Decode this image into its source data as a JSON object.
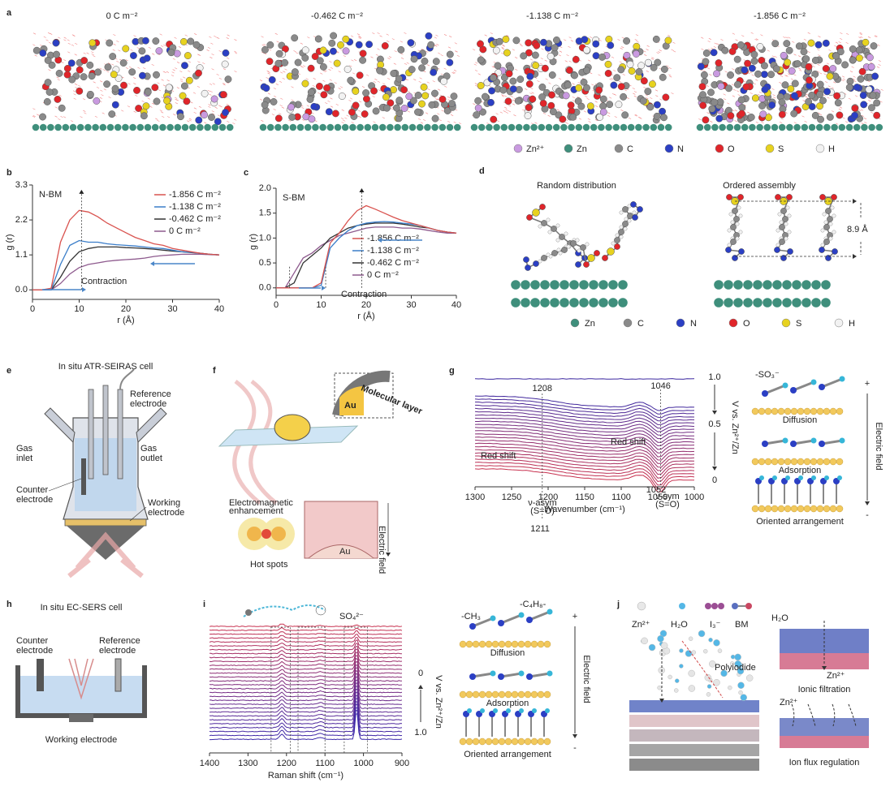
{
  "figure": {
    "a": {
      "label": "a",
      "titles": [
        "0 C m⁻²",
        "-0.462 C m⁻²",
        "-1.138 C m⁻²",
        "-1.856 C m⁻²"
      ],
      "legend": [
        "Zn²⁺",
        "Zn",
        "C",
        "N",
        "O",
        "S",
        "H"
      ]
    },
    "b": {
      "label": "b"
    },
    "c": {
      "label": "c"
    },
    "d": {
      "label": "d",
      "left_title": "Random distribution",
      "right_title": "Ordered assembly",
      "spacing": "8.9 Å",
      "legend": [
        "Zn",
        "C",
        "N",
        "O",
        "S",
        "H"
      ]
    },
    "e": {
      "label": "e",
      "title": "In situ ATR-SEIRAS cell",
      "reference": [
        "Reference",
        "electrode"
      ],
      "gas_inlet": [
        "Gas",
        "inlet"
      ],
      "gas_outlet": [
        "Gas",
        "outlet"
      ],
      "counter": [
        "Counter",
        "electrode"
      ],
      "working": [
        "Working",
        "electrode"
      ]
    },
    "f": {
      "label": "f",
      "layer": "Molecular layer",
      "au_top": "Au",
      "enhancement": [
        "Electromagnetic",
        "enhancement"
      ],
      "hot_spots": "Hot spots",
      "field": "Electric field",
      "au_bottom": "Au"
    },
    "g": {
      "label": "g",
      "peaks_top": [
        "1208",
        "1046"
      ],
      "red_shift": [
        "Red shift",
        "Red shift"
      ],
      "asym": [
        "ν-asym",
        "(S=O)"
      ],
      "sym": [
        "ν-sym",
        "(S=O)"
      ],
      "peaks_bottom": [
        "1211",
        "1052"
      ],
      "potentials": [
        "1.0",
        "0.5",
        "0"
      ],
      "potential_axis": "V vs. Zn²⁺/Zn",
      "scheme": {
        "group": "-SO₃⁻",
        "states": [
          "Diffusion",
          "Adsorption",
          "Oriented arrangement"
        ],
        "plus": "+",
        "minus": "-",
        "field": "Electric field"
      }
    },
    "h": {
      "label": "h",
      "title": "In situ EC-SERS cell",
      "counter": [
        "Counter",
        "electrode"
      ],
      "reference": [
        "Reference",
        "electrode"
      ],
      "working": "Working electrode"
    },
    "i": {
      "label": "i",
      "so4": "SO₄²⁻",
      "potentials": [
        "0",
        "1.0"
      ],
      "potential_axis": "V vs. Zn²⁺/Zn",
      "scheme": {
        "chain": "-C₄H₈-",
        "methyl": "-CH₃",
        "states": [
          "Diffusion",
          "Adsorption",
          "Oriented arrangement"
        ],
        "plus": "+",
        "minus": "-",
        "field": "Electric field"
      }
    },
    "j": {
      "label": "j",
      "legend": [
        "Zn²⁺",
        "H₂O",
        "I₃⁻",
        "BM"
      ],
      "polyiodide": "Polyiodide",
      "h2o": "H₂O",
      "zn_top": "Zn²⁺",
      "filtration": "Ionic filtration",
      "zn_bottom": "Zn²⁺",
      "regulation": "Ion flux regulation"
    }
  },
  "chart_data": [
    {
      "type": "line",
      "label": "N-BM",
      "annotation": "Contraction",
      "xlabel": "r (Å)",
      "ylabel": "g (r)",
      "x": [
        0,
        2,
        4,
        6,
        8,
        10,
        12,
        14,
        16,
        18,
        20,
        22,
        24,
        26,
        28,
        30,
        32,
        34,
        36,
        38,
        40
      ],
      "xlim": [
        0,
        40
      ],
      "xticks": [
        0,
        10,
        20,
        30,
        40
      ],
      "ylim": [
        -0.3,
        3.3
      ],
      "yticks": [
        {
          "value": 0,
          "label": "0.0"
        },
        1.1,
        2.2,
        3.3
      ],
      "legend": "upper right",
      "series": [
        {
          "name": "-1.856 C m⁻²",
          "color": "#d9534f",
          "values": [
            0,
            0,
            0.05,
            1.5,
            2.2,
            2.5,
            2.45,
            2.3,
            2.1,
            1.95,
            1.8,
            1.65,
            1.55,
            1.45,
            1.4,
            1.3,
            1.25,
            1.2,
            1.15,
            1.12,
            1.1
          ]
        },
        {
          "name": "-1.138 C m⁻²",
          "color": "#3a7dc9",
          "values": [
            0,
            0,
            0,
            0.8,
            1.4,
            1.55,
            1.5,
            1.5,
            1.45,
            1.42,
            1.4,
            1.38,
            1.35,
            1.32,
            1.3,
            1.25,
            1.2,
            1.18,
            1.15,
            1.12,
            1.1
          ]
        },
        {
          "name": "-0.462 C m⁻²",
          "color": "#333333",
          "values": [
            0,
            0,
            0,
            0.4,
            0.9,
            1.2,
            1.3,
            1.35,
            1.35,
            1.35,
            1.33,
            1.32,
            1.3,
            1.28,
            1.25,
            1.22,
            1.2,
            1.17,
            1.15,
            1.12,
            1.1
          ]
        },
        {
          "name": "0 C m⁻²",
          "color": "#8e5a8e",
          "values": [
            0,
            0,
            0,
            0.2,
            0.5,
            0.7,
            0.8,
            0.85,
            0.9,
            0.93,
            0.95,
            0.97,
            1.0,
            1.05,
            1.08,
            1.1,
            1.12,
            1.12,
            1.12,
            1.11,
            1.1
          ]
        }
      ]
    },
    {
      "type": "line",
      "label": "S-BM",
      "annotation": "Contraction",
      "xlabel": "r (Å)",
      "ylabel": "g (r)",
      "x": [
        0,
        2,
        4,
        6,
        8,
        10,
        12,
        14,
        16,
        18,
        20,
        22,
        24,
        26,
        28,
        30,
        32,
        34,
        36,
        38,
        40
      ],
      "xlim": [
        0,
        40
      ],
      "xticks": [
        0,
        10,
        20,
        30,
        40
      ],
      "ylim": [
        -0.15,
        2.0
      ],
      "yticks": [
        {
          "value": 0,
          "label": "0.0"
        },
        0.5,
        {
          "value": 1,
          "label": "1.0"
        },
        1.5,
        {
          "value": 2,
          "label": "2.0"
        }
      ],
      "legend": "lower right",
      "series": [
        {
          "name": "-1.856 C m⁻²",
          "color": "#d9534f",
          "values": [
            0,
            0,
            0,
            0,
            0,
            0.1,
            0.9,
            1.1,
            1.35,
            1.55,
            1.65,
            1.58,
            1.5,
            1.42,
            1.35,
            1.3,
            1.25,
            1.2,
            1.15,
            1.12,
            1.1
          ]
        },
        {
          "name": "-1.138 C m⁻²",
          "color": "#3a7dc9",
          "values": [
            0,
            0,
            0,
            0,
            0,
            0.05,
            0.8,
            1.0,
            1.15,
            1.25,
            1.3,
            1.32,
            1.33,
            1.32,
            1.3,
            1.28,
            1.25,
            1.2,
            1.15,
            1.12,
            1.1
          ]
        },
        {
          "name": "-0.462 C m⁻²",
          "color": "#333333",
          "values": [
            0,
            0,
            0.1,
            0.5,
            0.65,
            0.8,
            1.0,
            1.1,
            1.2,
            1.25,
            1.28,
            1.3,
            1.3,
            1.3,
            1.28,
            1.25,
            1.22,
            1.2,
            1.15,
            1.12,
            1.1
          ]
        },
        {
          "name": "0 C m⁻²",
          "color": "#8e5a8e",
          "values": [
            0,
            0,
            0.3,
            0.6,
            0.7,
            0.85,
            0.95,
            1.05,
            1.1,
            1.15,
            1.2,
            1.22,
            1.22,
            1.22,
            1.2,
            1.2,
            1.18,
            1.15,
            1.12,
            1.1,
            1.1
          ]
        }
      ]
    },
    {
      "type": "spectra",
      "xlabel": "Wavenumber (cm⁻¹)",
      "xlim": [
        1300,
        1000
      ],
      "xticks": [
        1300,
        1250,
        1200,
        1150,
        1100,
        1050,
        1000
      ]
    },
    {
      "type": "spectra",
      "xlabel": "Raman shift (cm⁻¹)",
      "xlim": [
        1400,
        900
      ],
      "xticks": [
        1400,
        1300,
        1200,
        1100,
        1000,
        900
      ]
    }
  ]
}
